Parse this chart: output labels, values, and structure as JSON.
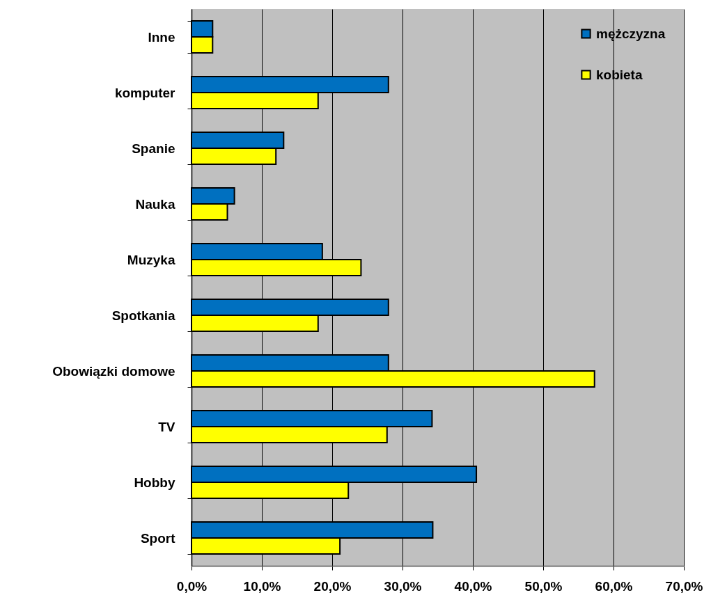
{
  "chart_data": {
    "type": "bar",
    "orientation": "horizontal",
    "categories": [
      "Inne",
      "komputer",
      "Spanie",
      "Nauka",
      "Muzyka",
      "Spotkania",
      "Obowiązki domowe",
      "TV",
      "Hobby",
      "Sport"
    ],
    "series": [
      {
        "name": "mężczyzna",
        "color": "#0070c0",
        "values": [
          3.0,
          28.0,
          13.1,
          6.1,
          18.6,
          28.0,
          28.0,
          34.2,
          40.5,
          34.3
        ]
      },
      {
        "name": "kobieta",
        "color": "#ffff00",
        "values": [
          3.0,
          18.0,
          12.0,
          5.1,
          24.1,
          18.0,
          57.3,
          27.8,
          22.3,
          21.1
        ]
      }
    ],
    "xlim": [
      0,
      70
    ],
    "xticks": [
      {
        "value": 0,
        "label": "0,0%"
      },
      {
        "value": 10,
        "label": "10,0%"
      },
      {
        "value": 20,
        "label": "20,0%"
      },
      {
        "value": 30,
        "label": "30,0%"
      },
      {
        "value": 40,
        "label": "40,0%"
      },
      {
        "value": 50,
        "label": "50,0%"
      },
      {
        "value": 60,
        "label": "60,0%"
      },
      {
        "value": 70,
        "label": "70,0%"
      }
    ],
    "grid": "x",
    "legend": "top right"
  }
}
